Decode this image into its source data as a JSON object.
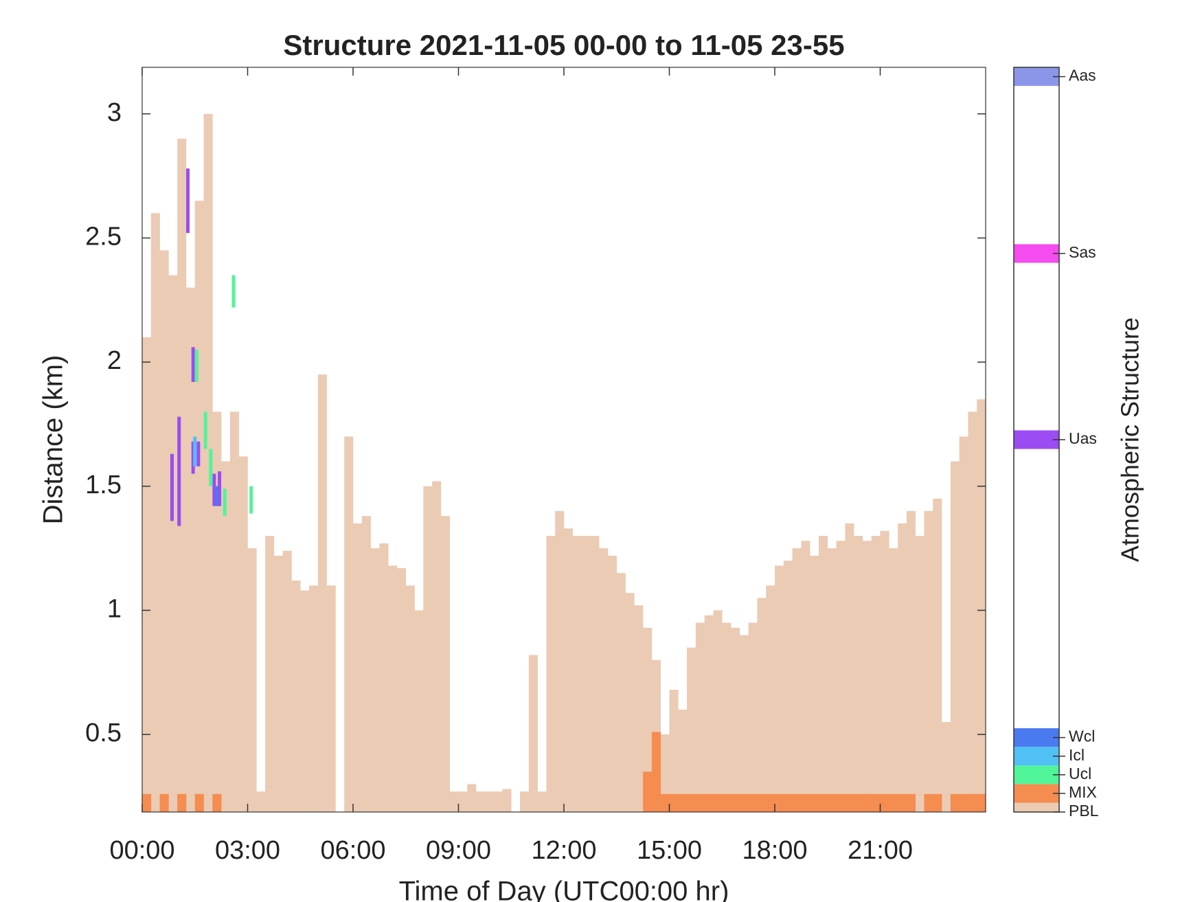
{
  "chart_data": {
    "type": "bar",
    "title": "Structure 2021-11-05 00-00 to 11-05 23-55",
    "x_label": "Time of Day (UTC00:00 hr)",
    "y_label": "Distance (km)",
    "xlim": [
      0,
      24
    ],
    "ylim": [
      0.1875,
      3.1875
    ],
    "xticks": [
      {
        "value": 0,
        "label": "00:00"
      },
      {
        "value": 3,
        "label": "03:00"
      },
      {
        "value": 6,
        "label": "06:00"
      },
      {
        "value": 9,
        "label": "09:00"
      },
      {
        "value": 12,
        "label": "12:00"
      },
      {
        "value": 15,
        "label": "15:00"
      },
      {
        "value": 18,
        "label": "18:00"
      },
      {
        "value": 21,
        "label": "21:00"
      }
    ],
    "yticks": [
      0.5,
      1,
      1.5,
      2,
      2.5,
      3
    ],
    "bar_width": 0.25,
    "x": [
      0,
      0.25,
      0.5,
      0.75,
      1,
      1.25,
      1.5,
      1.75,
      2,
      2.25,
      2.5,
      2.75,
      3,
      3.25,
      3.5,
      3.75,
      4,
      4.25,
      4.5,
      4.75,
      5,
      5.25,
      5.5,
      5.75,
      6,
      6.25,
      6.5,
      6.75,
      7,
      7.25,
      7.5,
      7.75,
      8,
      8.25,
      8.5,
      8.75,
      9,
      9.25,
      9.5,
      9.75,
      10,
      10.25,
      10.5,
      10.75,
      11,
      11.25,
      11.5,
      11.75,
      12,
      12.25,
      12.5,
      12.75,
      13,
      13.25,
      13.5,
      13.75,
      14,
      14.25,
      14.5,
      14.75,
      15,
      15.25,
      15.5,
      15.75,
      16,
      16.25,
      16.5,
      16.75,
      17,
      17.25,
      17.5,
      17.75,
      18,
      18.25,
      18.5,
      18.75,
      19,
      19.25,
      19.5,
      19.75,
      20,
      20.25,
      20.5,
      20.75,
      21,
      21.25,
      21.5,
      21.75,
      22,
      22.25,
      22.5,
      22.75,
      23,
      23.25,
      23.5,
      23.75
    ],
    "series": [
      {
        "name": "PBL",
        "color": "#ebcbb4",
        "values": [
          2.1,
          2.6,
          2.45,
          2.35,
          2.9,
          2.3,
          2.65,
          3.0,
          1.8,
          1.6,
          1.8,
          1.62,
          1.25,
          0.27,
          1.3,
          1.22,
          1.24,
          1.12,
          1.08,
          1.1,
          1.95,
          1.1,
          null,
          1.7,
          1.35,
          1.38,
          1.25,
          1.27,
          1.18,
          1.17,
          1.1,
          1.0,
          1.5,
          1.52,
          1.38,
          0.27,
          0.27,
          0.3,
          0.27,
          0.27,
          0.27,
          0.28,
          null,
          0.27,
          0.82,
          0.27,
          1.3,
          1.4,
          1.33,
          1.3,
          1.3,
          1.3,
          1.25,
          1.22,
          1.15,
          1.07,
          1.02,
          0.93,
          0.8,
          0.5,
          0.68,
          0.6,
          0.85,
          0.95,
          0.98,
          1.0,
          0.95,
          0.93,
          0.9,
          0.95,
          1.05,
          1.1,
          1.18,
          1.2,
          1.25,
          1.28,
          1.22,
          1.3,
          1.25,
          1.28,
          1.35,
          1.3,
          1.28,
          1.3,
          1.32,
          1.25,
          1.35,
          1.4,
          1.3,
          1.4,
          1.45,
          0.55,
          1.6,
          1.7,
          1.8,
          1.85
        ]
      },
      {
        "name": "MIX",
        "color": "#f58c50",
        "values": [
          0.26,
          null,
          0.26,
          null,
          0.26,
          null,
          0.26,
          null,
          0.26,
          null,
          null,
          null,
          null,
          null,
          null,
          null,
          null,
          null,
          null,
          null,
          null,
          null,
          null,
          null,
          null,
          null,
          null,
          null,
          null,
          null,
          null,
          null,
          null,
          null,
          null,
          null,
          null,
          null,
          null,
          null,
          null,
          null,
          null,
          null,
          null,
          null,
          null,
          null,
          null,
          null,
          null,
          null,
          null,
          null,
          null,
          null,
          null,
          0.35,
          0.51,
          0.26,
          0.26,
          0.26,
          0.26,
          0.26,
          0.26,
          0.26,
          0.26,
          0.26,
          0.26,
          0.26,
          0.26,
          0.26,
          0.26,
          0.26,
          0.26,
          0.26,
          0.26,
          0.26,
          0.26,
          0.26,
          0.26,
          0.26,
          0.26,
          0.26,
          0.26,
          0.26,
          0.26,
          0.26,
          null,
          0.26,
          0.26,
          null,
          0.26,
          0.26,
          0.26,
          0.26
        ]
      }
    ],
    "segments": [
      {
        "name": "Uas",
        "color": "#9b4cf2",
        "items": [
          [
            0.85,
            1.36,
            1.63
          ],
          [
            1.05,
            1.34,
            1.78
          ],
          [
            1.3,
            2.52,
            2.78
          ],
          [
            1.45,
            1.92,
            2.06
          ],
          [
            1.45,
            1.55,
            1.68
          ],
          [
            1.6,
            1.58,
            1.68
          ],
          [
            2.05,
            1.42,
            1.55
          ],
          [
            2.2,
            1.42,
            1.56
          ]
        ]
      },
      {
        "name": "Ucl",
        "color": "#50f59a",
        "items": [
          [
            1.55,
            1.92,
            2.05
          ],
          [
            1.8,
            1.65,
            1.8
          ],
          [
            1.95,
            1.5,
            1.65
          ],
          [
            2.35,
            1.38,
            1.49
          ],
          [
            2.6,
            2.22,
            2.35
          ],
          [
            3.1,
            1.39,
            1.5
          ]
        ]
      },
      {
        "name": "Icl",
        "color": "#50c0f5",
        "items": [
          [
            1.5,
            1.58,
            1.7
          ]
        ]
      },
      {
        "name": "Wcl",
        "color": "#4a7af0",
        "items": [
          [
            2.12,
            1.42,
            1.5
          ]
        ]
      }
    ],
    "colorbar": {
      "label": "Atmospheric Structure",
      "clim": [
        0,
        40
      ],
      "levels": [
        {
          "name": "PBL",
          "value": 0,
          "color": "#ebcbb4"
        },
        {
          "name": "MIX",
          "value": 1,
          "color": "#f58c50"
        },
        {
          "name": "Ucl",
          "value": 2,
          "color": "#50f59a"
        },
        {
          "name": "Icl",
          "value": 3,
          "color": "#50c0f5"
        },
        {
          "name": "Wcl",
          "value": 4,
          "color": "#4a7af0"
        },
        {
          "name": "Uas",
          "value": 20,
          "color": "#9b4cf2"
        },
        {
          "name": "Sas",
          "value": 30,
          "color": "#f54cf0"
        },
        {
          "name": "Aas",
          "value": 39.5,
          "color": "#8b96e8"
        }
      ]
    }
  }
}
